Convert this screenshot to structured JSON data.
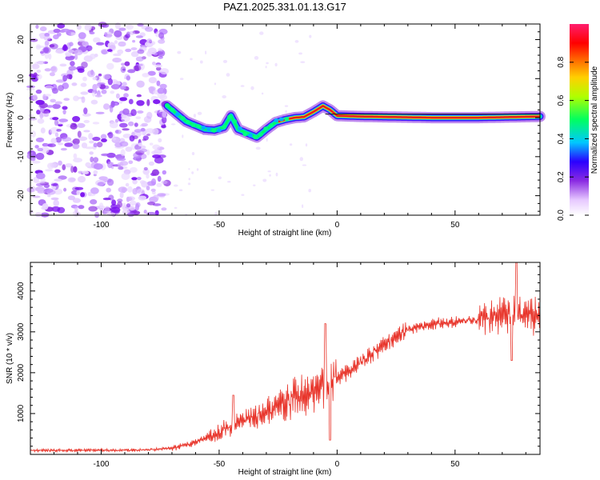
{
  "title": "PAZ1.2025.331.01.13.G17",
  "colors": {
    "snr_line": "#e8342a",
    "track_core": "#e02020",
    "frame": "#000000"
  },
  "chart_data": [
    {
      "type": "heatmap",
      "name": "spectrogram",
      "xlabel": "Height of straight line (km)",
      "ylabel": "Frequency (Hz)",
      "xlim": [
        -130,
        86
      ],
      "ylim": [
        -25,
        24
      ],
      "xticks": [
        -100,
        -50,
        0,
        50
      ],
      "yticks": [
        -20,
        -10,
        0,
        10,
        20
      ],
      "colorbar": {
        "label": "Normalized spectral amplitude",
        "range": [
          0,
          1
        ],
        "ticks": [
          0.0,
          0.2,
          0.4,
          0.6,
          0.8
        ]
      },
      "track": {
        "description_height_km": [
          -72,
          -68,
          -64,
          -60,
          -56,
          -52,
          -48,
          -45,
          -42,
          -38,
          -34,
          -30,
          -26,
          -22,
          -18,
          -14,
          -10,
          -6,
          -3,
          0,
          5,
          10,
          20,
          40,
          60,
          86
        ],
        "frequency_hz": [
          3,
          1,
          -1,
          -2,
          -3,
          -3.2,
          -2.5,
          0.5,
          -3,
          -4,
          -5,
          -3,
          -1.2,
          -0.5,
          0,
          0.2,
          1.5,
          3,
          2,
          0.5,
          0.4,
          0.3,
          0.2,
          0,
          0,
          0.3
        ]
      },
      "noise_region_km": [
        -130,
        -70
      ]
    },
    {
      "type": "line",
      "name": "snr",
      "xlabel": "Height of straight line (km)",
      "ylabel": "SNR (10 * v/v)",
      "xlim": [
        -130,
        86
      ],
      "ylim": [
        0,
        4700
      ],
      "xticks": [
        -100,
        -50,
        0,
        50
      ],
      "yticks": [
        1000,
        2000,
        3000,
        4000
      ],
      "trend": {
        "x": [
          -130,
          -100,
          -80,
          -70,
          -60,
          -50,
          -40,
          -30,
          -20,
          -10,
          0,
          10,
          20,
          30,
          40,
          50,
          60,
          70,
          80,
          86
        ],
        "y": [
          100,
          100,
          110,
          150,
          300,
          550,
          800,
          1050,
          1300,
          1550,
          1850,
          2250,
          2700,
          3050,
          3200,
          3250,
          3300,
          3400,
          3450,
          3350
        ]
      }
    }
  ]
}
